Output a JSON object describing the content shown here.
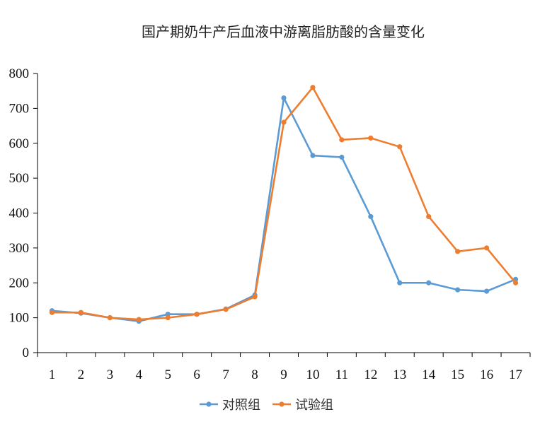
{
  "chart_data": {
    "type": "line",
    "title": "国产期奶牛产后血液中游离脂肪酸的含量变化",
    "xlabel": "",
    "ylabel": "",
    "categories": [
      "1",
      "2",
      "3",
      "4",
      "5",
      "6",
      "7",
      "8",
      "9",
      "10",
      "11",
      "12",
      "13",
      "14",
      "15",
      "16",
      "17"
    ],
    "ylim": [
      0,
      800
    ],
    "yticks": [
      0,
      100,
      200,
      300,
      400,
      500,
      600,
      700,
      800
    ],
    "grid": false,
    "legend_position": "bottom",
    "series": [
      {
        "name": "对照组",
        "color": "#5B9BD5",
        "values": [
          120,
          113,
          100,
          90,
          110,
          110,
          125,
          165,
          730,
          565,
          560,
          390,
          200,
          200,
          180,
          176,
          210
        ]
      },
      {
        "name": "试验组",
        "color": "#ED7D31",
        "values": [
          115,
          115,
          100,
          95,
          100,
          110,
          124,
          160,
          660,
          760,
          610,
          615,
          590,
          390,
          290,
          300,
          200
        ]
      }
    ]
  }
}
